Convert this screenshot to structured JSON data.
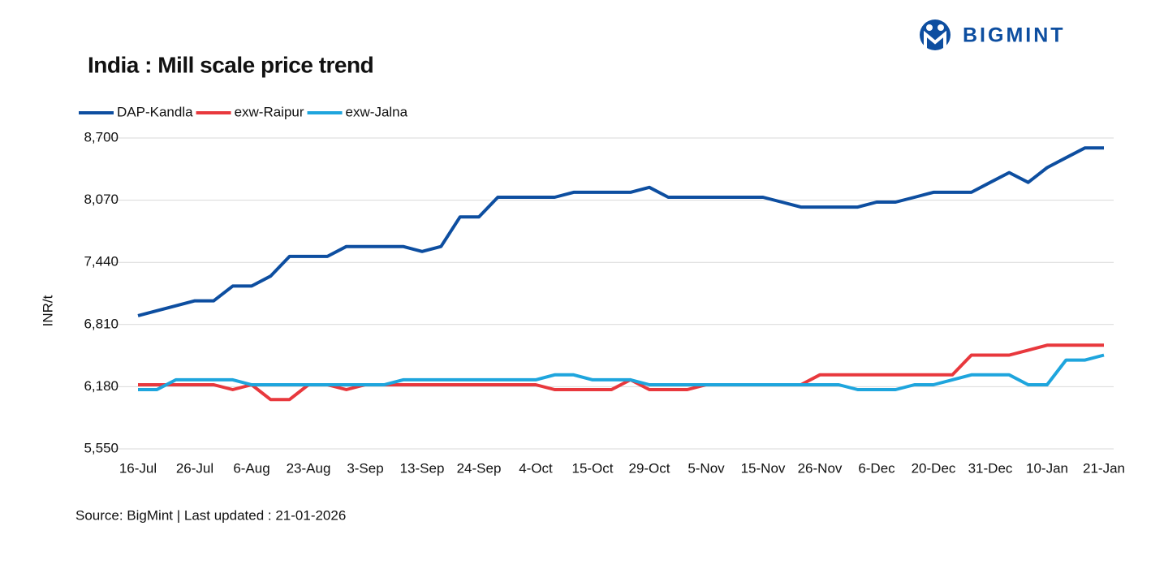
{
  "logo": "BIGMINT",
  "chart_data": {
    "type": "line",
    "title": "India : Mill scale price trend",
    "y_label": "INR/t",
    "source": "Source: BigMint | Last updated : 21-01-2026",
    "categories": [
      "16-Jul",
      null,
      null,
      "26-Jul",
      null,
      null,
      "6-Aug",
      null,
      null,
      "23-Aug",
      null,
      null,
      "3-Sep",
      null,
      null,
      "13-Sep",
      null,
      null,
      "24-Sep",
      null,
      null,
      "4-Oct",
      null,
      null,
      "15-Oct",
      null,
      null,
      "29-Oct",
      null,
      null,
      "5-Nov",
      null,
      null,
      "15-Nov",
      null,
      null,
      "26-Nov",
      null,
      null,
      "6-Dec",
      null,
      null,
      "20-Dec",
      null,
      null,
      "31-Dec",
      null,
      null,
      "10-Jan",
      null,
      null,
      "21-Jan"
    ],
    "series": [
      {
        "name": "DAP-Kandla",
        "color": "#0d4ea0",
        "values": [
          6900,
          6950,
          7000,
          7050,
          7050,
          7200,
          7200,
          7300,
          7500,
          7500,
          7500,
          7600,
          7600,
          7600,
          7600,
          7550,
          7600,
          7900,
          7900,
          8100,
          8100,
          8100,
          8100,
          8150,
          8150,
          8150,
          8150,
          8200,
          8100,
          8100,
          8100,
          8100,
          8100,
          8100,
          8050,
          8000,
          8000,
          8000,
          8000,
          8050,
          8050,
          8100,
          8150,
          8150,
          8150,
          8250,
          8350,
          8250,
          8400,
          8500,
          8600,
          8600
        ]
      },
      {
        "name": "exw-Raipur",
        "color": "#e8383d",
        "values": [
          6200,
          6200,
          6200,
          6200,
          6200,
          6150,
          6200,
          6050,
          6050,
          6200,
          6200,
          6150,
          6200,
          6200,
          6200,
          6200,
          6200,
          6200,
          6200,
          6200,
          6200,
          6200,
          6150,
          6150,
          6150,
          6150,
          6250,
          6150,
          6150,
          6150,
          6200,
          6200,
          6200,
          6200,
          6200,
          6200,
          6300,
          6300,
          6300,
          6300,
          6300,
          6300,
          6300,
          6300,
          6500,
          6500,
          6500,
          6550,
          6600,
          6600,
          6600,
          6600
        ]
      },
      {
        "name": "exw-Jalna",
        "color": "#1ea5dd",
        "values": [
          6150,
          6150,
          6250,
          6250,
          6250,
          6250,
          6200,
          6200,
          6200,
          6200,
          6200,
          6200,
          6200,
          6200,
          6250,
          6250,
          6250,
          6250,
          6250,
          6250,
          6250,
          6250,
          6300,
          6300,
          6250,
          6250,
          6250,
          6200,
          6200,
          6200,
          6200,
          6200,
          6200,
          6200,
          6200,
          6200,
          6200,
          6200,
          6150,
          6150,
          6150,
          6200,
          6200,
          6250,
          6300,
          6300,
          6300,
          6200,
          6200,
          6450,
          6450,
          6500
        ]
      }
    ],
    "ylim": [
      5550,
      8700
    ],
    "yticks": [
      {
        "value": 5550,
        "label": "5,550"
      },
      {
        "value": 6180,
        "label": "6,180"
      },
      {
        "value": 6810,
        "label": "6,810"
      },
      {
        "value": 7440,
        "label": "7,440"
      },
      {
        "value": 8070,
        "label": "8,070"
      },
      {
        "value": 8700,
        "label": "8,700"
      }
    ],
    "grid": true,
    "legend": "top-left"
  }
}
